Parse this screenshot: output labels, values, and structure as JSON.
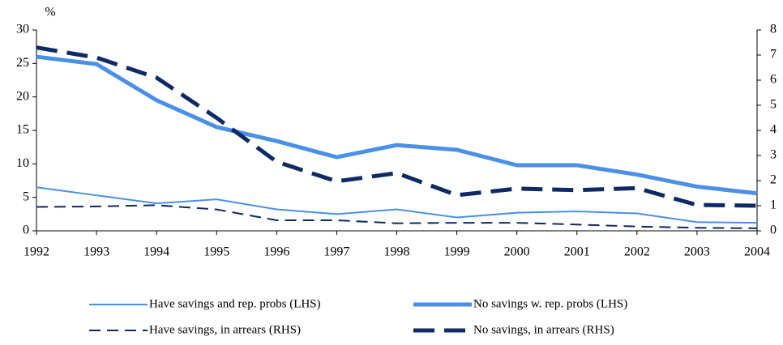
{
  "chart_data": {
    "type": "line",
    "y_label": "%",
    "categories": [
      "1992",
      "1993",
      "1994",
      "1995",
      "1996",
      "1997",
      "1998",
      "1999",
      "2000",
      "2001",
      "2002",
      "2003",
      "2004"
    ],
    "ylim": [
      0,
      30
    ],
    "yticks": [
      0,
      5,
      10,
      15,
      20,
      25,
      30
    ],
    "y2lim": [
      0,
      8
    ],
    "y2ticks": [
      0,
      1,
      2,
      3,
      4,
      5,
      6,
      7,
      8
    ],
    "series": [
      {
        "name": "Have savings and rep. probs (LHS)",
        "color": "#4a8fe8",
        "width": 2,
        "dashed": false,
        "values": [
          6.5,
          5.3,
          4.1,
          4.7,
          3.2,
          2.5,
          3.2,
          2.0,
          2.7,
          2.9,
          2.6,
          1.3,
          1.2
        ]
      },
      {
        "name": "No savings w. rep. probs (LHS)",
        "color": "#4a8fe8",
        "width": 5,
        "dashed": false,
        "values": [
          26,
          24.9,
          19.5,
          15.5,
          13.4,
          11.0,
          12.8,
          12.1,
          9.8,
          9.8,
          8.4,
          6.6,
          5.6
        ]
      },
      {
        "name": "Have savings, in arrears (RHS)",
        "color": "#0d2a66",
        "width": 2,
        "dashed": true,
        "axis": "y2",
        "values": [
          0.95,
          0.97,
          1.02,
          0.85,
          0.42,
          0.42,
          0.3,
          0.32,
          0.32,
          0.25,
          0.17,
          0.12,
          0.1
        ]
      },
      {
        "name": "No savings, in arrears (RHS)",
        "color": "#0d2a66",
        "width": 5,
        "dashed": true,
        "axis": "y2",
        "values": [
          7.3,
          6.9,
          6.1,
          4.5,
          2.75,
          1.97,
          2.3,
          1.42,
          1.68,
          1.62,
          1.7,
          1.03,
          1.0
        ]
      }
    ]
  }
}
